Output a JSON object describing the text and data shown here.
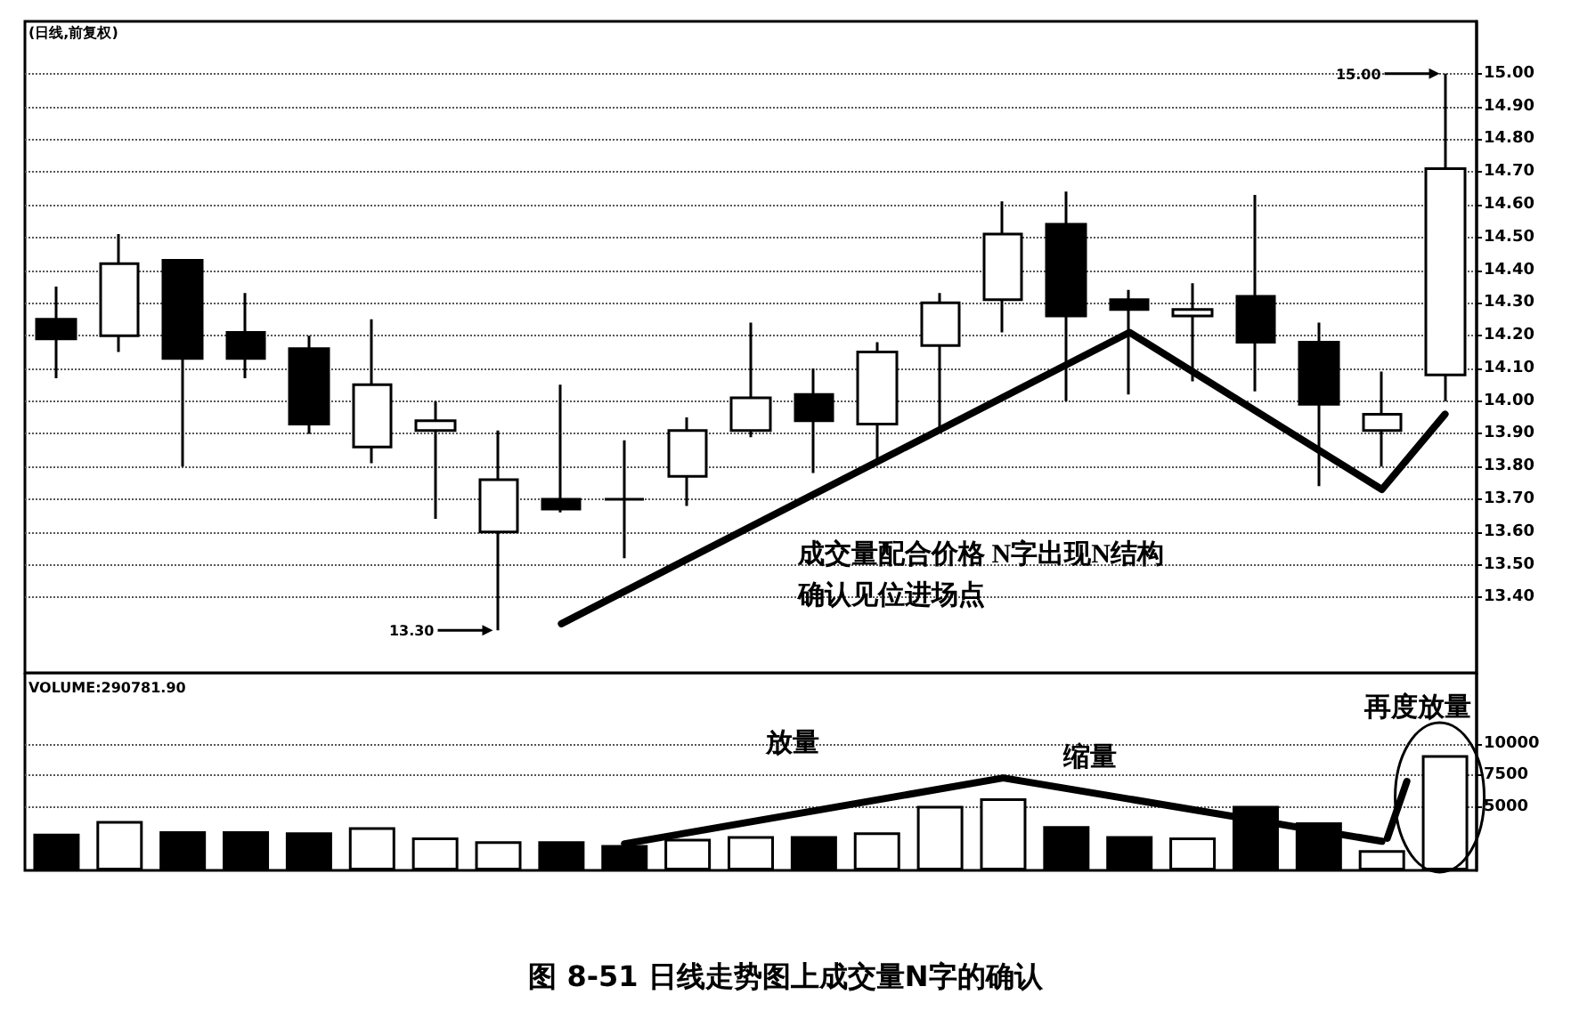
{
  "chart_data": [
    {
      "type": "candlestick",
      "title": "(日线,前复权)",
      "categories": [
        null,
        null,
        null,
        null,
        null,
        null,
        null,
        null,
        null,
        null,
        null,
        null,
        null,
        null,
        null,
        null,
        null,
        null,
        null,
        null,
        null,
        null,
        null
      ],
      "series": [
        {
          "type": "candlestick",
          "color": "#000000",
          "ohlc": [
            [
              14.25,
              14.35,
              14.07,
              14.19
            ],
            [
              14.2,
              14.51,
              14.15,
              14.42
            ],
            [
              14.43,
              14.43,
              13.8,
              14.13
            ],
            [
              14.21,
              14.33,
              14.07,
              14.13
            ],
            [
              14.16,
              14.2,
              13.9,
              13.93
            ],
            [
              13.86,
              14.25,
              13.81,
              14.05
            ],
            [
              13.91,
              14.0,
              13.64,
              13.94
            ],
            [
              13.6,
              13.91,
              13.3,
              13.76
            ],
            [
              13.7,
              14.05,
              13.66,
              13.67
            ],
            [
              13.7,
              13.88,
              13.52,
              13.7
            ],
            [
              13.77,
              13.95,
              13.68,
              13.91
            ],
            [
              13.91,
              14.24,
              13.89,
              14.01
            ],
            [
              14.02,
              14.1,
              13.78,
              13.94
            ],
            [
              13.93,
              14.18,
              13.82,
              14.15
            ],
            [
              14.17,
              14.33,
              13.92,
              14.3
            ],
            [
              14.31,
              14.61,
              14.21,
              14.51
            ],
            [
              14.54,
              14.64,
              14.0,
              14.26
            ],
            [
              14.31,
              14.34,
              14.02,
              14.28
            ],
            [
              14.26,
              14.36,
              14.06,
              14.28
            ],
            [
              14.32,
              14.63,
              14.03,
              14.18
            ],
            [
              14.18,
              14.24,
              13.74,
              13.99
            ],
            [
              13.91,
              14.09,
              13.8,
              13.96
            ],
            [
              14.08,
              15.0,
              14.0,
              14.71
            ]
          ]
        },
        {
          "type": "line",
          "values": [
            null,
            null,
            null,
            null,
            null,
            null,
            null,
            null,
            13.32,
            null,
            null,
            null,
            null,
            null,
            null,
            null,
            null,
            14.21,
            null,
            null,
            null,
            13.73,
            13.96
          ],
          "color": "#000000",
          "marker": "none"
        }
      ],
      "ylim": [
        13.17,
        15.16
      ],
      "yticks": [
        {
          "value": 13.4,
          "label": "13.40"
        },
        {
          "value": 13.5,
          "label": "13.50"
        },
        {
          "value": 13.6,
          "label": "13.60"
        },
        {
          "value": 13.7,
          "label": "13.70"
        },
        {
          "value": 13.8,
          "label": "13.80"
        },
        {
          "value": 13.9,
          "label": "13.90"
        },
        {
          "value": 14.0,
          "label": "14.00"
        },
        {
          "value": 14.1,
          "label": "14.10"
        },
        {
          "value": 14.2,
          "label": "14.20"
        },
        {
          "value": 14.3,
          "label": "14.30"
        },
        {
          "value": 14.4,
          "label": "14.40"
        },
        {
          "value": 14.5,
          "label": "14.50"
        },
        {
          "value": 14.6,
          "label": "14.60"
        },
        {
          "value": 14.7,
          "label": "14.70"
        },
        {
          "value": 14.8,
          "label": "14.80"
        },
        {
          "value": 14.9,
          "label": "14.90"
        },
        {
          "value": 15.0,
          "label": "15.00"
        }
      ],
      "grid": "y",
      "tick_labels": "y",
      "annotations": [
        "13.30",
        "15.00",
        "成交量配合价格 N字出现N结构",
        "确认见位进场点"
      ]
    },
    {
      "type": "bar",
      "categories": [
        null,
        null,
        null,
        null,
        null,
        null,
        null,
        null,
        null,
        null,
        null,
        null,
        null,
        null,
        null,
        null,
        null,
        null,
        null,
        null,
        null,
        null,
        null
      ],
      "series": [
        {
          "type": "bar",
          "values": [
            2900,
            3900,
            3100,
            3100,
            3000,
            3400,
            2600,
            2300,
            2300,
            2000,
            2500,
            2700,
            2700,
            3000,
            5100,
            5700,
            3500,
            2700,
            2600,
            5100,
            3800,
            1600,
            9100
          ],
          "colors": [
            "#000000",
            "#ffffff",
            "#000000",
            "#000000",
            "#000000",
            "#ffffff",
            "#ffffff",
            "#ffffff",
            "#000000",
            "#000000",
            "#ffffff",
            "#ffffff",
            "#000000",
            "#ffffff",
            "#ffffff",
            "#ffffff",
            "#000000",
            "#000000",
            "#ffffff",
            "#000000",
            "#000000",
            "#ffffff",
            "#ffffff"
          ]
        },
        {
          "type": "line",
          "values": [
            null,
            null,
            null,
            null,
            null,
            null,
            null,
            null,
            null,
            2100,
            null,
            null,
            null,
            null,
            null,
            7300,
            null,
            null,
            null,
            null,
            null,
            2300,
            null
          ],
          "color": "#000000",
          "marker": "none"
        }
      ],
      "ylim": [
        0,
        15600
      ],
      "yticks": [
        5000,
        7500,
        10000
      ],
      "grid": "y",
      "tick_labels": "y",
      "annotations": [
        "VOLUME:290781.90",
        "放量",
        "缩量",
        "再度放量",
        "图 8-51 日线走势图上成交量N字的确认"
      ]
    }
  ]
}
